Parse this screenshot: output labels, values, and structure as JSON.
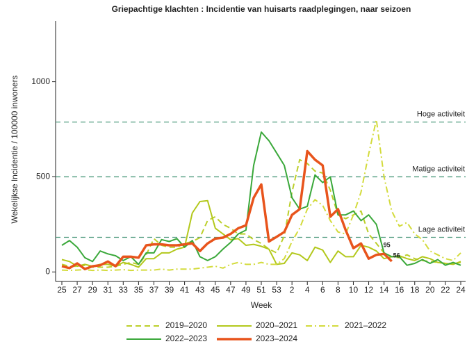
{
  "chart_data": {
    "type": "line",
    "title": "Griepachtige klachten : Incidentie van huisarts raadplegingen, naar seizoen",
    "x_label": "Week",
    "y_label": "Wekelijkse Incidentie / 100000 inwoners",
    "categories": [
      "25",
      null,
      "27",
      null,
      "29",
      null,
      "31",
      null,
      "33",
      null,
      "35",
      null,
      "37",
      null,
      "39",
      null,
      "41",
      null,
      "43",
      null,
      "45",
      null,
      "47",
      null,
      "49",
      null,
      "51",
      null,
      "53",
      null,
      "2",
      null,
      "4",
      null,
      "6",
      null,
      "8",
      null,
      "10",
      null,
      "12",
      null,
      "14",
      null,
      "16",
      null,
      "18",
      null,
      "20",
      null,
      "22",
      null,
      "24"
    ],
    "ylim": [
      -50,
      1320
    ],
    "yticks": [
      0,
      500,
      1000
    ],
    "reference_lines": [
      {
        "value": 788,
        "label": "Hoge activiteit"
      },
      {
        "value": 500,
        "label": "Matige activiteit"
      },
      {
        "value": 182,
        "label": "Lage activiteit"
      }
    ],
    "reference_color": "#4e9a7e",
    "series": [
      {
        "name": "2019–2020",
        "color": "#bccf2a",
        "dash": "dashed",
        "linewidth": 2,
        "values": [
          40,
          30,
          30,
          35,
          25,
          25,
          25,
          30,
          40,
          50,
          40,
          90,
          175,
          140,
          130,
          130,
          150,
          160,
          180,
          270,
          290,
          250,
          230,
          200,
          200,
          170,
          150,
          120,
          100,
          190,
          420,
          590,
          570,
          530,
          520,
          430,
          300,
          280,
          300,
          320,
          200,
          150,
          100,
          80,
          75,
          90,
          70,
          60,
          55,
          50,
          45,
          45,
          50
        ]
      },
      {
        "name": "2020–2021",
        "color": "#b3c81c",
        "dash": "solid",
        "linewidth": 2,
        "values": [
          65,
          55,
          30,
          40,
          30,
          40,
          40,
          30,
          50,
          40,
          25,
          70,
          70,
          100,
          100,
          120,
          130,
          310,
          370,
          375,
          230,
          200,
          170,
          175,
          140,
          145,
          135,
          120,
          40,
          45,
          100,
          90,
          60,
          130,
          115,
          50,
          110,
          80,
          80,
          140,
          130,
          110,
          70,
          80,
          85,
          70,
          60,
          80,
          70,
          50,
          45,
          40,
          55
        ]
      },
      {
        "name": "2021–2022",
        "color": "#d3db3c",
        "dash": "dashdot",
        "linewidth": 2,
        "values": [
          10,
          8,
          10,
          12,
          8,
          10,
          8,
          10,
          12,
          8,
          10,
          10,
          10,
          15,
          10,
          15,
          15,
          15,
          20,
          25,
          30,
          20,
          40,
          50,
          40,
          40,
          50,
          40,
          40,
          70,
          160,
          230,
          330,
          380,
          350,
          270,
          210,
          200,
          300,
          420,
          620,
          800,
          500,
          320,
          240,
          260,
          200,
          170,
          110,
          90,
          70,
          60,
          100
        ]
      },
      {
        "name": "2022–2023",
        "color": "#3aa83a",
        "dash": "solid",
        "linewidth": 2,
        "values": [
          140,
          165,
          130,
          75,
          55,
          110,
          95,
          85,
          60,
          80,
          40,
          100,
          100,
          170,
          160,
          175,
          130,
          165,
          80,
          60,
          80,
          120,
          155,
          200,
          220,
          560,
          735,
          690,
          625,
          560,
          390,
          330,
          345,
          510,
          470,
          500,
          300,
          300,
          320,
          270,
          300,
          250,
          100,
          80,
          80,
          35,
          45,
          65,
          45,
          65,
          35,
          50,
          35
        ]
      },
      {
        "name": "2023–2024",
        "color": "#e8541c",
        "dash": "solid",
        "linewidth": 3.5,
        "label_last": true,
        "values": [
          30,
          20,
          45,
          15,
          30,
          35,
          55,
          30,
          80,
          80,
          75,
          140,
          145,
          145,
          140,
          140,
          145,
          150,
          110,
          150,
          175,
          180,
          200,
          230,
          245,
          390,
          460,
          160,
          185,
          210,
          300,
          330,
          635,
          590,
          560,
          290,
          330,
          220,
          125,
          150,
          70,
          90,
          95,
          56,
          null,
          null,
          null,
          null,
          null,
          null,
          null,
          null,
          null
        ]
      }
    ]
  }
}
